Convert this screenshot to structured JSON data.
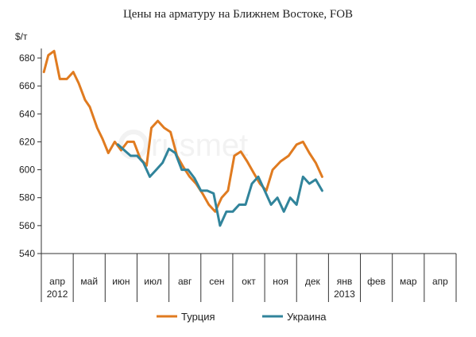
{
  "chart_data": {
    "type": "line",
    "title": "Цены на арматуру на Ближнем Востоке, FOB",
    "ylabel": "$/т",
    "xlabel": "",
    "ylim": [
      540,
      690
    ],
    "yticks": [
      540,
      560,
      580,
      600,
      620,
      640,
      660,
      680
    ],
    "grid": false,
    "legend_position": "bottom",
    "months": [
      "апр",
      "май",
      "июн",
      "июл",
      "авг",
      "сен",
      "окт",
      "ноя",
      "дек",
      "янв",
      "фев",
      "мар",
      "апр"
    ],
    "year_labels": [
      {
        "month_index": 0,
        "text": "2012"
      },
      {
        "month_index": 9,
        "text": "2013"
      }
    ],
    "series": [
      {
        "name": "Турция",
        "color": "#e07b20",
        "points": [
          {
            "m": 0.08,
            "y": 670
          },
          {
            "m": 0.22,
            "y": 682
          },
          {
            "m": 0.4,
            "y": 685
          },
          {
            "m": 0.58,
            "y": 665
          },
          {
            "m": 0.8,
            "y": 665
          },
          {
            "m": 1.0,
            "y": 670
          },
          {
            "m": 1.17,
            "y": 662
          },
          {
            "m": 1.37,
            "y": 650
          },
          {
            "m": 1.52,
            "y": 645
          },
          {
            "m": 1.75,
            "y": 630
          },
          {
            "m": 1.92,
            "y": 622
          },
          {
            "m": 2.1,
            "y": 612
          },
          {
            "m": 2.3,
            "y": 620
          },
          {
            "m": 2.5,
            "y": 614
          },
          {
            "m": 2.7,
            "y": 620
          },
          {
            "m": 2.9,
            "y": 620
          },
          {
            "m": 3.1,
            "y": 608
          },
          {
            "m": 3.3,
            "y": 603
          },
          {
            "m": 3.45,
            "y": 630
          },
          {
            "m": 3.65,
            "y": 635
          },
          {
            "m": 3.85,
            "y": 630
          },
          {
            "m": 4.05,
            "y": 627
          },
          {
            "m": 4.25,
            "y": 610
          },
          {
            "m": 4.45,
            "y": 602
          },
          {
            "m": 4.65,
            "y": 595
          },
          {
            "m": 4.85,
            "y": 590
          },
          {
            "m": 5.05,
            "y": 583
          },
          {
            "m": 5.25,
            "y": 575
          },
          {
            "m": 5.45,
            "y": 570
          },
          {
            "m": 5.65,
            "y": 580
          },
          {
            "m": 5.85,
            "y": 585
          },
          {
            "m": 6.05,
            "y": 610
          },
          {
            "m": 6.25,
            "y": 613
          },
          {
            "m": 6.45,
            "y": 606
          },
          {
            "m": 6.65,
            "y": 598
          },
          {
            "m": 6.85,
            "y": 590
          },
          {
            "m": 7.05,
            "y": 585
          },
          {
            "m": 7.25,
            "y": 600
          },
          {
            "m": 7.5,
            "y": 606
          },
          {
            "m": 7.75,
            "y": 610
          },
          {
            "m": 8.0,
            "y": 618
          },
          {
            "m": 8.2,
            "y": 620
          },
          {
            "m": 8.4,
            "y": 612
          },
          {
            "m": 8.6,
            "y": 605
          },
          {
            "m": 8.8,
            "y": 595
          }
        ]
      },
      {
        "name": "Украина",
        "color": "#31849b",
        "points": [
          {
            "m": 2.4,
            "y": 618
          },
          {
            "m": 2.6,
            "y": 614
          },
          {
            "m": 2.8,
            "y": 610
          },
          {
            "m": 3.0,
            "y": 610
          },
          {
            "m": 3.2,
            "y": 605
          },
          {
            "m": 3.4,
            "y": 595
          },
          {
            "m": 3.6,
            "y": 600
          },
          {
            "m": 3.8,
            "y": 605
          },
          {
            "m": 4.0,
            "y": 615
          },
          {
            "m": 4.2,
            "y": 612
          },
          {
            "m": 4.4,
            "y": 600
          },
          {
            "m": 4.6,
            "y": 600
          },
          {
            "m": 4.8,
            "y": 594
          },
          {
            "m": 5.0,
            "y": 585
          },
          {
            "m": 5.2,
            "y": 585
          },
          {
            "m": 5.4,
            "y": 583
          },
          {
            "m": 5.6,
            "y": 560
          },
          {
            "m": 5.8,
            "y": 570
          },
          {
            "m": 6.0,
            "y": 570
          },
          {
            "m": 6.2,
            "y": 575
          },
          {
            "m": 6.4,
            "y": 575
          },
          {
            "m": 6.6,
            "y": 590
          },
          {
            "m": 6.8,
            "y": 595
          },
          {
            "m": 7.0,
            "y": 585
          },
          {
            "m": 7.2,
            "y": 575
          },
          {
            "m": 7.4,
            "y": 580
          },
          {
            "m": 7.6,
            "y": 570
          },
          {
            "m": 7.8,
            "y": 580
          },
          {
            "m": 8.0,
            "y": 575
          },
          {
            "m": 8.2,
            "y": 595
          },
          {
            "m": 8.4,
            "y": 590
          },
          {
            "m": 8.6,
            "y": 593
          },
          {
            "m": 8.8,
            "y": 585
          }
        ]
      }
    ]
  }
}
